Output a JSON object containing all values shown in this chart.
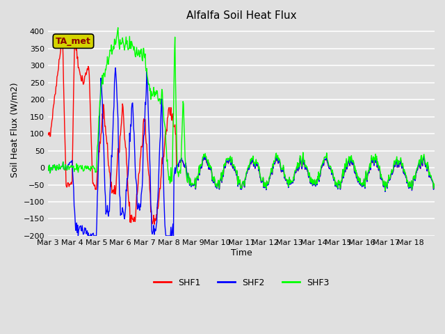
{
  "title": "Alfalfa Soil Heat Flux",
  "ylabel": "Soil Heat Flux (W/m2)",
  "xlabel": "Time",
  "ylim": [
    -200,
    420
  ],
  "bg_color": "#e0e0e0",
  "plot_bg_color": "#e0e0e0",
  "grid_color": "white",
  "annotation_text": "TA_met",
  "line_colors": [
    "red",
    "blue",
    "lime"
  ],
  "x_tick_labels": [
    "Mar 3",
    "Mar 4",
    "Mar 5",
    "Mar 6",
    "Mar 7",
    "Mar 8",
    "Mar 9",
    "Mar 10",
    "Mar 11",
    "Mar 12",
    "Mar 13",
    "Mar 14",
    "Mar 15",
    "Mar 16",
    "Mar 17",
    "Mar 18"
  ],
  "y_ticks": [
    -200,
    -150,
    -100,
    -50,
    0,
    50,
    100,
    150,
    200,
    250,
    300,
    350,
    400
  ]
}
